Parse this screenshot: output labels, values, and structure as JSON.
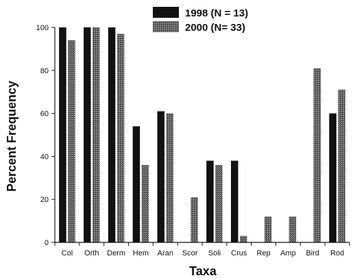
{
  "chart_data": {
    "type": "bar",
    "xlabel": "Taxa",
    "ylabel": "Percent Frequency",
    "ylim": [
      0,
      100
    ],
    "yticks": [
      "0",
      "20",
      "40",
      "60",
      "80",
      "100"
    ],
    "grid": false,
    "legend_position": "top",
    "categories": [
      "Col",
      "Orth",
      "Derm",
      "Hem",
      "Aran",
      "Scor",
      "Soli",
      "Crus",
      "Rep",
      "Amp",
      "Bird",
      "Rod"
    ],
    "series": [
      {
        "name": "1998 (N = 13)",
        "color": "#111111",
        "values": [
          100,
          100,
          100,
          54,
          61,
          0,
          38,
          38,
          0,
          0,
          0,
          60
        ]
      },
      {
        "name": "2000 (N= 33)",
        "color": "#555555",
        "values": [
          94,
          100,
          97,
          36,
          60,
          21,
          36,
          3,
          12,
          12,
          81,
          71
        ]
      }
    ]
  }
}
